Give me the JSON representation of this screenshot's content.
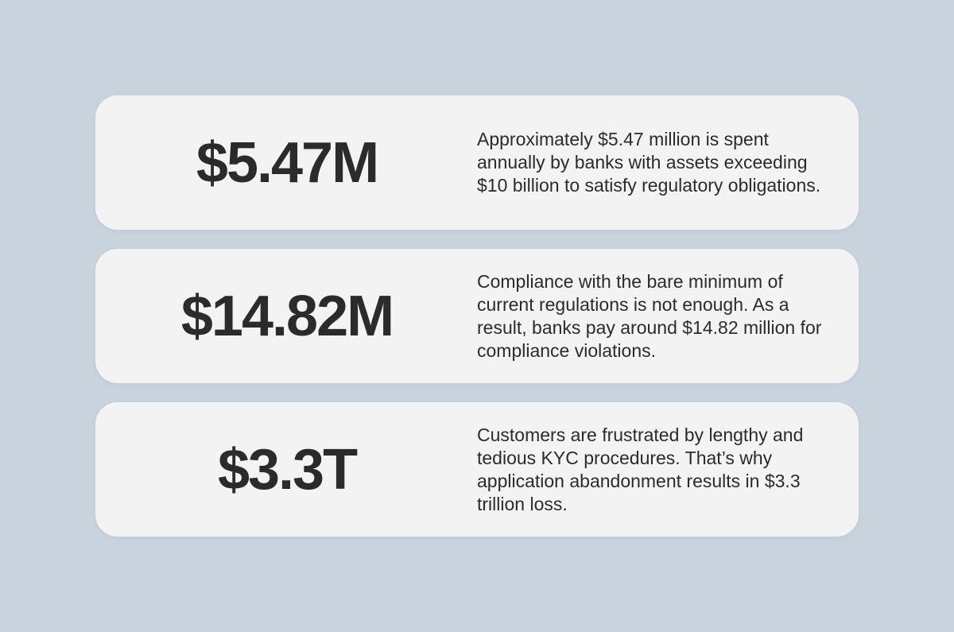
{
  "cards": [
    {
      "value": "$5.47M",
      "description": "Approximately $5.47 million is spent annually by banks with assets exceeding $10 billion to satisfy regulatory obligations."
    },
    {
      "value": "$14.82M",
      "description": "Compliance with the bare minimum of current regulations is not enough. As a result, banks pay around $14.82 million for compliance violations."
    },
    {
      "value": "$3.3T",
      "description": "Customers are frustrated by lengthy and tedious KYC procedures. That’s why application abandonment results in $3.3 trillion loss."
    }
  ],
  "colors": {
    "background": "#c8d3dd",
    "card": "#f4f3f4",
    "text": "#2b2b2b"
  }
}
